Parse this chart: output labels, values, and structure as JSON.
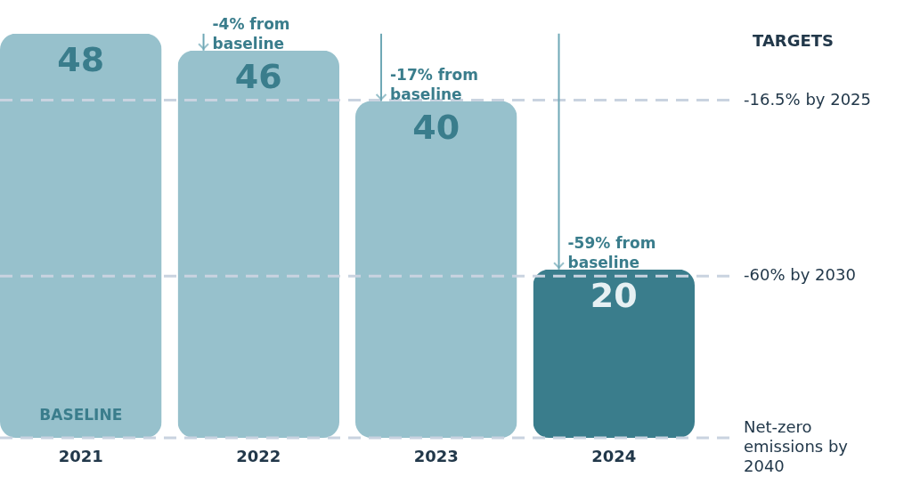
{
  "chart_data": {
    "type": "bar",
    "categories": [
      "2021",
      "2022",
      "2023",
      "2024"
    ],
    "values": [
      48,
      46,
      40,
      20
    ],
    "colors": [
      "#97c1cc",
      "#97c1cc",
      "#97c1cc",
      "#3a7d8c"
    ],
    "data_labels": true,
    "ylim": [
      0,
      52
    ],
    "tick_labels": "x",
    "grid": false,
    "ref_lines": [
      {
        "axis": "y",
        "value": 40.1,
        "label": "-16.5% by 2025",
        "color": "#c9d3e0",
        "line_style": "dashed"
      },
      {
        "axis": "y",
        "value": 19.2,
        "label": "-60% by 2030",
        "color": "#c9d3e0",
        "line_style": "dashed"
      },
      {
        "axis": "y",
        "value": 0,
        "label": "Net-zero emissions by 2040",
        "color": "#c9d3e0",
        "line_style": "dashed"
      }
    ],
    "annotations": [
      "TARGETS",
      "BASELINE",
      {
        "text": "-4% from baseline",
        "x": "2022",
        "y": 46
      },
      {
        "text": "-17% from baseline",
        "x": "2023",
        "y": 40
      },
      {
        "text": "-59% from baseline",
        "x": "2024",
        "y": 20
      }
    ]
  }
}
